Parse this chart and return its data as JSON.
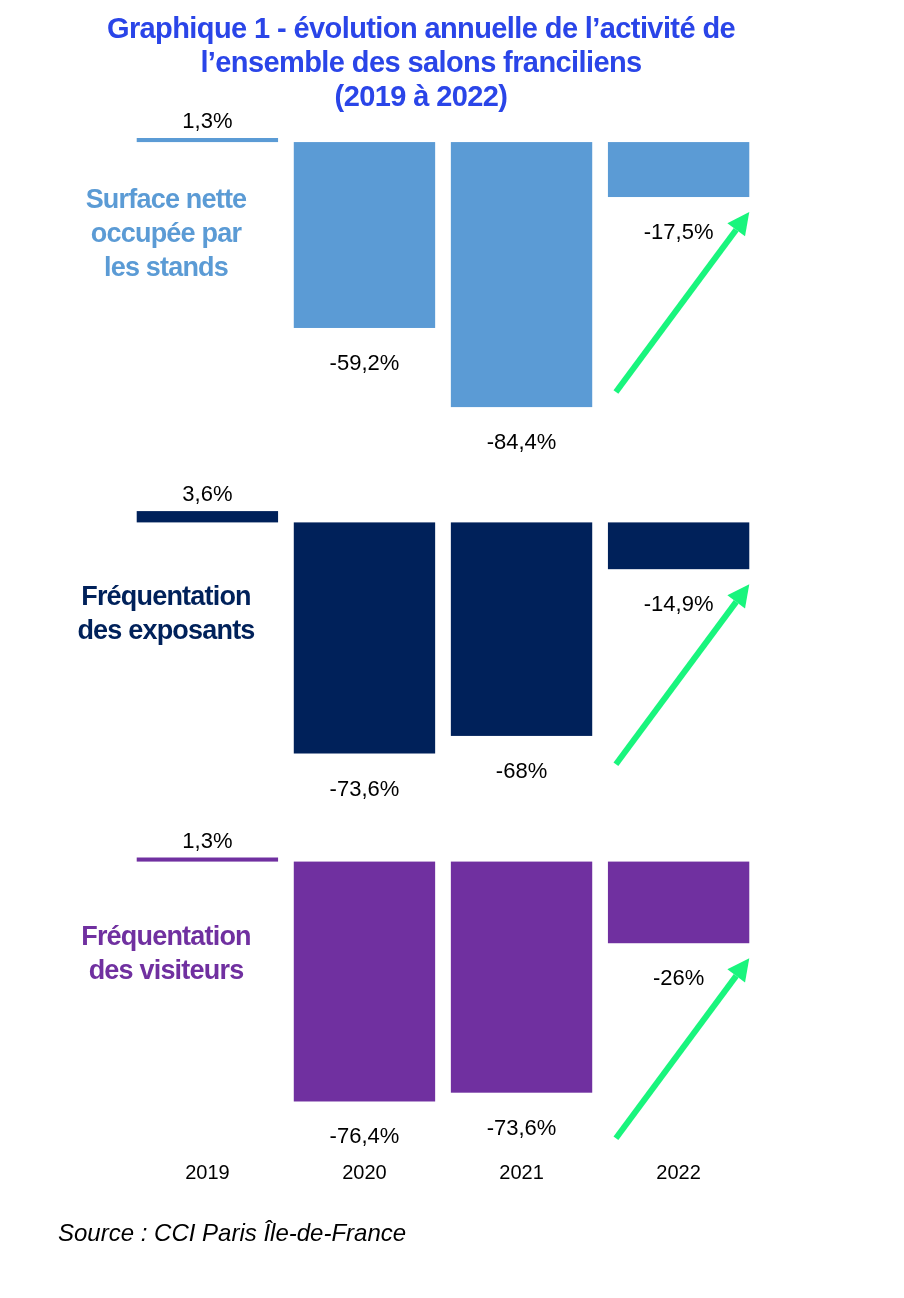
{
  "chart_data": [
    {
      "type": "bar",
      "title": "Graphique 1 - évolution annuelle de l’activité de\nl’ensemble des salons franciliens\n(2019 à 2022)",
      "ylabel": "Surface nette occupée par les stands",
      "categories": [
        "2019",
        "2020",
        "2021",
        "2022"
      ],
      "values": [
        1.3,
        -59.2,
        -84.4,
        -17.5
      ],
      "value_labels": [
        "1,3%",
        "-59,2%",
        "-84,4%",
        "-17,5%"
      ],
      "color": "#5b9bd5",
      "tick_labels": false
    },
    {
      "type": "bar",
      "ylabel": "Fréquentation des exposants",
      "categories": [
        "2019",
        "2020",
        "2021",
        "2022"
      ],
      "values": [
        3.6,
        -73.6,
        -68,
        -14.9
      ],
      "value_labels": [
        "3,6%",
        "-73,6%",
        "-68%",
        "-14,9%"
      ],
      "color": "#00215a",
      "tick_labels": false
    },
    {
      "type": "bar",
      "ylabel": "Fréquentation des visiteurs",
      "categories": [
        "2019",
        "2020",
        "2021",
        "2022"
      ],
      "values": [
        1.3,
        -76.4,
        -73.6,
        -26
      ],
      "value_labels": [
        "1,3%",
        "-76,4%",
        "-73,6%",
        "-26%"
      ],
      "color": "#7030a0",
      "tick_labels": "x",
      "annotations": [
        "Source : CCI Paris Île-de-France"
      ]
    }
  ]
}
